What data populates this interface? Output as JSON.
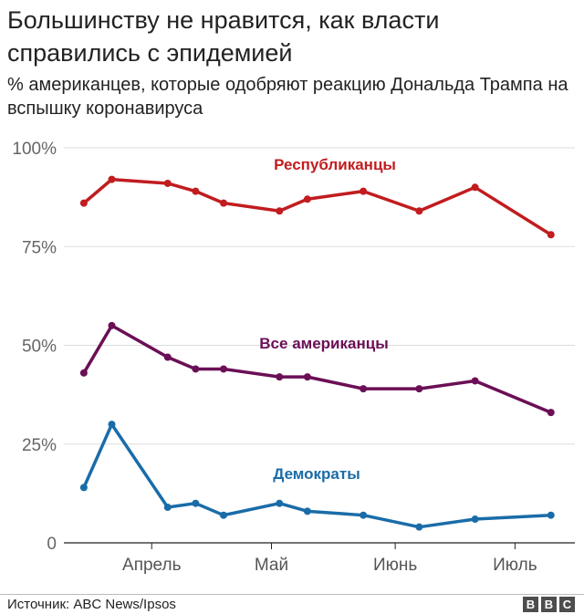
{
  "header": {
    "title": "Большинству не нравится, как власти справились с эпидемией",
    "subtitle": "% американцев, которые одобряют реакцию Дональда Трампа на вспышку коронавируса"
  },
  "footer": {
    "source": "Источник: ABC News/Ipsos",
    "logo_letters": [
      "B",
      "B",
      "C"
    ]
  },
  "chart_data": {
    "type": "line",
    "x_type": "date",
    "x": [
      "2020-03-15",
      "2020-03-22",
      "2020-04-05",
      "2020-04-12",
      "2020-04-19",
      "2020-05-03",
      "2020-05-10",
      "2020-05-24",
      "2020-06-07",
      "2020-06-21",
      "2020-07-10"
    ],
    "xlim": [
      "2020-03-10",
      "2020-07-16"
    ],
    "x_ticks": [
      {
        "date": "2020-04-01",
        "label": "Апрель"
      },
      {
        "date": "2020-05-01",
        "label": "Май"
      },
      {
        "date": "2020-06-01",
        "label": "Июнь"
      },
      {
        "date": "2020-07-01",
        "label": "Июль"
      }
    ],
    "ylim": [
      0,
      100
    ],
    "y_ticks": [
      {
        "value": 0,
        "label": "0"
      },
      {
        "value": 25,
        "label": "25%"
      },
      {
        "value": 50,
        "label": "50%"
      },
      {
        "value": 75,
        "label": "75%"
      },
      {
        "value": 100,
        "label": "100%"
      }
    ],
    "grid": true,
    "series": [
      {
        "name": "Республиканцы",
        "color": "#c11c1f",
        "values": [
          86,
          92,
          91,
          89,
          86,
          84,
          87,
          89,
          84,
          90,
          78
        ]
      },
      {
        "name": "Все американцы",
        "color": "#6b0f56",
        "values": [
          43,
          55,
          47,
          44,
          44,
          42,
          42,
          39,
          39,
          41,
          33
        ]
      },
      {
        "name": "Демократы",
        "color": "#1a6ca8",
        "values": [
          14,
          30,
          9,
          10,
          7,
          10,
          8,
          7,
          4,
          6,
          7
        ]
      }
    ]
  }
}
